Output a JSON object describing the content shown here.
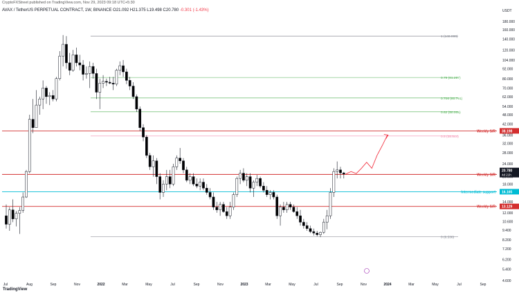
{
  "header": {
    "published": "CryptoFXStreet published on TradingView.com, Nov 29, 2023 09:18 UTC+5:30",
    "symbol_line": "AVAX / TetherUS PERPETUAL CONTRACT, 1W, BINANCE",
    "ohlc": "O21.092 H21.375 L19.498 C20.780",
    "change": "-0.301 (-1.43%)"
  },
  "footer": {
    "brand": "TradingView"
  },
  "colors": {
    "bull": "#ffffff",
    "bear": "#000000",
    "wick": "#131722",
    "support_resistance": "#d32f2f",
    "fib_green": "#4caf50",
    "fib_red": "#f48fb1",
    "fib_gray": "#787b86",
    "intermediate": "#00bcd4",
    "arrow": "#f23645"
  },
  "chart_data": {
    "type": "candlestick",
    "title": "AVAX / TetherUS PERPETUAL CONTRACT, 1W, BINANCE",
    "yscale": "log",
    "ylim": [
      4.6,
      200
    ],
    "yunit": "USDT",
    "yticks": [
      4.6,
      5.4,
      6.2,
      7.2,
      8.2,
      9.4,
      10.6,
      12.0,
      14.0,
      16.0,
      18.0,
      20.0,
      22.0,
      24.0,
      28.0,
      32.0,
      36.0,
      42.0,
      48.0,
      54.0,
      62.0,
      70.0,
      80.0,
      92.0,
      104.0,
      120.0,
      140.0,
      160.0,
      180.0
    ],
    "ytick_labels": [
      "4.600",
      "5.400",
      "6.200",
      "7.200",
      "8.200",
      "9.400",
      "10.600",
      "12.000",
      "14.000",
      "16.000",
      "18.000",
      "20.000",
      "22.000",
      "24.000",
      "28.000",
      "32.000",
      "36.000",
      "42.000",
      "48.000",
      "54.000",
      "62.000",
      "70.000",
      "80.000",
      "92.000",
      "104.000",
      "120.000",
      "140.000",
      "160.000",
      "180.000"
    ],
    "xticks": [
      "Jul",
      "Aug",
      "Sep",
      "Nov",
      "2022",
      "Mar",
      "May",
      "Jul",
      "Sep",
      "Nov",
      "2023",
      "Mar",
      "May",
      "Jul",
      "Sep",
      "Nov",
      "2024",
      "Mar",
      "May",
      "Jul",
      "Sep"
    ],
    "candles": [
      {
        "o": 11.5,
        "h": 13.5,
        "l": 9.6,
        "c": 10.2
      },
      {
        "o": 10.2,
        "h": 13.0,
        "l": 9.3,
        "c": 12.5
      },
      {
        "o": 12.5,
        "h": 14.5,
        "l": 10.5,
        "c": 11.0
      },
      {
        "o": 11.0,
        "h": 12.3,
        "l": 9.9,
        "c": 11.9
      },
      {
        "o": 11.9,
        "h": 13.0,
        "l": 8.9,
        "c": 12.4
      },
      {
        "o": 12.4,
        "h": 16.0,
        "l": 12.0,
        "c": 15.0
      },
      {
        "o": 15.0,
        "h": 22.0,
        "l": 14.8,
        "c": 21.5
      },
      {
        "o": 21.5,
        "h": 48.0,
        "l": 21.0,
        "c": 45.0
      },
      {
        "o": 45.0,
        "h": 60.0,
        "l": 37.0,
        "c": 40.0
      },
      {
        "o": 40.0,
        "h": 68.0,
        "l": 40.0,
        "c": 55.0
      },
      {
        "o": 55.0,
        "h": 62.0,
        "l": 48.0,
        "c": 60.0
      },
      {
        "o": 60.0,
        "h": 78.0,
        "l": 52.0,
        "c": 70.0
      },
      {
        "o": 70.0,
        "h": 72.0,
        "l": 56.0,
        "c": 62.0
      },
      {
        "o": 62.0,
        "h": 66.0,
        "l": 55.0,
        "c": 63.0
      },
      {
        "o": 63.0,
        "h": 68.0,
        "l": 58.0,
        "c": 60.0
      },
      {
        "o": 60.0,
        "h": 82.0,
        "l": 58.0,
        "c": 80.0
      },
      {
        "o": 80.0,
        "h": 118.0,
        "l": 78.0,
        "c": 110.0
      },
      {
        "o": 110.0,
        "h": 148.0,
        "l": 95.0,
        "c": 130.0
      },
      {
        "o": 130.0,
        "h": 146.0,
        "l": 92.0,
        "c": 100.0
      },
      {
        "o": 100.0,
        "h": 115.0,
        "l": 84.0,
        "c": 90.0
      },
      {
        "o": 90.0,
        "h": 120.0,
        "l": 88.0,
        "c": 112.0
      },
      {
        "o": 112.0,
        "h": 124.0,
        "l": 95.0,
        "c": 100.0
      },
      {
        "o": 100.0,
        "h": 112.0,
        "l": 90.0,
        "c": 97.0
      },
      {
        "o": 97.0,
        "h": 104.0,
        "l": 78.0,
        "c": 85.0
      },
      {
        "o": 85.0,
        "h": 95.0,
        "l": 80.0,
        "c": 86.0
      },
      {
        "o": 86.0,
        "h": 102.0,
        "l": 70.0,
        "c": 95.0
      },
      {
        "o": 95.0,
        "h": 100.0,
        "l": 80.0,
        "c": 86.0
      },
      {
        "o": 86.0,
        "h": 92.0,
        "l": 60.0,
        "c": 66.0
      },
      {
        "o": 66.0,
        "h": 80.0,
        "l": 52.0,
        "c": 75.0
      },
      {
        "o": 75.0,
        "h": 84.0,
        "l": 70.0,
        "c": 77.0
      },
      {
        "o": 77.0,
        "h": 80.0,
        "l": 72.0,
        "c": 76.0
      },
      {
        "o": 76.0,
        "h": 82.0,
        "l": 74.0,
        "c": 75.0
      },
      {
        "o": 75.0,
        "h": 82.0,
        "l": 68.0,
        "c": 74.0
      },
      {
        "o": 74.0,
        "h": 92.0,
        "l": 72.0,
        "c": 90.0
      },
      {
        "o": 90.0,
        "h": 102.0,
        "l": 84.0,
        "c": 96.0
      },
      {
        "o": 96.0,
        "h": 104.0,
        "l": 82.0,
        "c": 88.0
      },
      {
        "o": 88.0,
        "h": 92.0,
        "l": 74.0,
        "c": 78.0
      },
      {
        "o": 78.0,
        "h": 82.0,
        "l": 68.0,
        "c": 72.0
      },
      {
        "o": 72.0,
        "h": 76.0,
        "l": 60.0,
        "c": 62.0
      },
      {
        "o": 62.0,
        "h": 64.0,
        "l": 50.0,
        "c": 52.0
      },
      {
        "o": 52.0,
        "h": 54.0,
        "l": 38.0,
        "c": 40.0
      },
      {
        "o": 40.0,
        "h": 42.0,
        "l": 33.0,
        "c": 35.0
      },
      {
        "o": 35.0,
        "h": 36.0,
        "l": 26.0,
        "c": 27.0
      },
      {
        "o": 27.0,
        "h": 28.0,
        "l": 22.0,
        "c": 23.0
      },
      {
        "o": 23.0,
        "h": 27.0,
        "l": 20.0,
        "c": 25.0
      },
      {
        "o": 25.0,
        "h": 26.0,
        "l": 18.0,
        "c": 20.0
      },
      {
        "o": 20.0,
        "h": 21.0,
        "l": 14.5,
        "c": 16.0
      },
      {
        "o": 16.0,
        "h": 19.0,
        "l": 15.0,
        "c": 18.0
      },
      {
        "o": 18.0,
        "h": 22.0,
        "l": 16.5,
        "c": 20.0
      },
      {
        "o": 20.0,
        "h": 22.0,
        "l": 17.0,
        "c": 18.0
      },
      {
        "o": 18.0,
        "h": 24.0,
        "l": 17.5,
        "c": 23.0
      },
      {
        "o": 23.0,
        "h": 27.0,
        "l": 22.0,
        "c": 26.0
      },
      {
        "o": 26.0,
        "h": 30.0,
        "l": 24.0,
        "c": 25.0
      },
      {
        "o": 25.0,
        "h": 26.0,
        "l": 21.0,
        "c": 22.0
      },
      {
        "o": 22.0,
        "h": 23.0,
        "l": 18.5,
        "c": 19.0
      },
      {
        "o": 19.0,
        "h": 21.0,
        "l": 18.0,
        "c": 20.0
      },
      {
        "o": 20.0,
        "h": 21.0,
        "l": 17.5,
        "c": 18.0
      },
      {
        "o": 18.0,
        "h": 19.5,
        "l": 17.0,
        "c": 17.5
      },
      {
        "o": 17.5,
        "h": 19.5,
        "l": 16.5,
        "c": 18.5
      },
      {
        "o": 18.5,
        "h": 19.5,
        "l": 16.5,
        "c": 17.0
      },
      {
        "o": 17.0,
        "h": 18.0,
        "l": 15.5,
        "c": 16.0
      },
      {
        "o": 16.0,
        "h": 17.0,
        "l": 14.5,
        "c": 15.0
      },
      {
        "o": 15.0,
        "h": 16.0,
        "l": 12.5,
        "c": 13.0
      },
      {
        "o": 13.0,
        "h": 14.0,
        "l": 12.0,
        "c": 12.5
      },
      {
        "o": 12.5,
        "h": 14.0,
        "l": 11.5,
        "c": 13.5
      },
      {
        "o": 13.5,
        "h": 14.0,
        "l": 12.0,
        "c": 12.2
      },
      {
        "o": 12.2,
        "h": 13.0,
        "l": 11.0,
        "c": 11.5
      },
      {
        "o": 11.5,
        "h": 14.0,
        "l": 11.0,
        "c": 13.0
      },
      {
        "o": 13.0,
        "h": 16.0,
        "l": 12.5,
        "c": 15.5
      },
      {
        "o": 15.5,
        "h": 20.0,
        "l": 15.0,
        "c": 19.5
      },
      {
        "o": 19.5,
        "h": 22.0,
        "l": 18.0,
        "c": 21.0
      },
      {
        "o": 21.0,
        "h": 22.5,
        "l": 18.5,
        "c": 19.0
      },
      {
        "o": 19.0,
        "h": 21.0,
        "l": 17.5,
        "c": 20.0
      },
      {
        "o": 20.0,
        "h": 21.0,
        "l": 16.0,
        "c": 17.0
      },
      {
        "o": 17.0,
        "h": 19.0,
        "l": 15.0,
        "c": 18.5
      },
      {
        "o": 18.5,
        "h": 20.5,
        "l": 17.5,
        "c": 19.5
      },
      {
        "o": 19.5,
        "h": 20.0,
        "l": 17.0,
        "c": 17.5
      },
      {
        "o": 17.5,
        "h": 18.5,
        "l": 16.0,
        "c": 16.5
      },
      {
        "o": 16.5,
        "h": 17.5,
        "l": 15.0,
        "c": 15.5
      },
      {
        "o": 15.5,
        "h": 16.5,
        "l": 14.5,
        "c": 16.0
      },
      {
        "o": 16.0,
        "h": 16.5,
        "l": 14.5,
        "c": 15.0
      },
      {
        "o": 15.0,
        "h": 15.5,
        "l": 11.0,
        "c": 11.5
      },
      {
        "o": 11.5,
        "h": 13.5,
        "l": 10.0,
        "c": 13.0
      },
      {
        "o": 13.0,
        "h": 14.0,
        "l": 12.0,
        "c": 12.5
      },
      {
        "o": 12.5,
        "h": 14.0,
        "l": 12.0,
        "c": 13.5
      },
      {
        "o": 13.5,
        "h": 14.0,
        "l": 12.5,
        "c": 13.0
      },
      {
        "o": 13.0,
        "h": 13.5,
        "l": 12.0,
        "c": 12.2
      },
      {
        "o": 12.2,
        "h": 13.0,
        "l": 11.0,
        "c": 11.5
      },
      {
        "o": 11.5,
        "h": 12.5,
        "l": 10.0,
        "c": 10.5
      },
      {
        "o": 10.5,
        "h": 11.0,
        "l": 9.6,
        "c": 10.0
      },
      {
        "o": 10.0,
        "h": 10.5,
        "l": 9.3,
        "c": 9.6
      },
      {
        "o": 9.6,
        "h": 10.0,
        "l": 9.0,
        "c": 9.2
      },
      {
        "o": 9.2,
        "h": 9.6,
        "l": 8.7,
        "c": 9.0
      },
      {
        "o": 9.0,
        "h": 9.3,
        "l": 8.6,
        "c": 8.8
      },
      {
        "o": 8.8,
        "h": 9.2,
        "l": 8.5,
        "c": 9.1
      },
      {
        "o": 9.1,
        "h": 11.0,
        "l": 8.9,
        "c": 10.5
      },
      {
        "o": 10.5,
        "h": 12.5,
        "l": 9.5,
        "c": 11.5
      },
      {
        "o": 11.5,
        "h": 17.0,
        "l": 11.0,
        "c": 16.0
      },
      {
        "o": 16.0,
        "h": 22.5,
        "l": 15.0,
        "c": 21.5
      },
      {
        "o": 21.5,
        "h": 24.8,
        "l": 19.5,
        "c": 22.0
      },
      {
        "o": 22.0,
        "h": 23.0,
        "l": 19.5,
        "c": 21.1
      },
      {
        "o": 21.092,
        "h": 21.375,
        "l": 19.498,
        "c": 20.78
      }
    ],
    "fib_levels": [
      {
        "label": "1 (146.000)",
        "value": 146.0,
        "color": "#787b86"
      },
      {
        "label": "0.79 (81.287)",
        "value": 81.287,
        "color": "#4caf50"
      },
      {
        "label": "0.706 (60.791)",
        "value": 60.791,
        "color": "#4caf50"
      },
      {
        "label": "0.62 (50.005)",
        "value": 50.005,
        "color": "#4caf50"
      },
      {
        "label": "0.5 (35.544)",
        "value": 35.544,
        "color": "#f48fb1"
      },
      {
        "label": "0 (8.536)",
        "value": 8.536,
        "color": "#787b86"
      }
    ],
    "levels": [
      {
        "label": "Weekly S/R",
        "value": 38.198,
        "tag": "38.198",
        "color": "#d32f2f"
      },
      {
        "label": "Weekly S/R",
        "value": 20.644,
        "tag": "20.644",
        "color": "#d32f2f"
      },
      {
        "label": "Intermediate support",
        "value": 16.165,
        "tag": "16.165",
        "color": "#00bcd4"
      },
      {
        "label": "Weekly S/R",
        "value": 13.129,
        "tag": "13.129",
        "color": "#d32f2f"
      }
    ],
    "last_price": {
      "price": "20.780",
      "countdown": "4d 21h"
    },
    "projection": [
      20.78,
      21.5,
      20.9,
      22.5,
      24.5,
      22.5,
      27.0,
      31.0,
      36.0
    ],
    "fib_range": {
      "start_index": 24,
      "end_index": 98
    }
  }
}
